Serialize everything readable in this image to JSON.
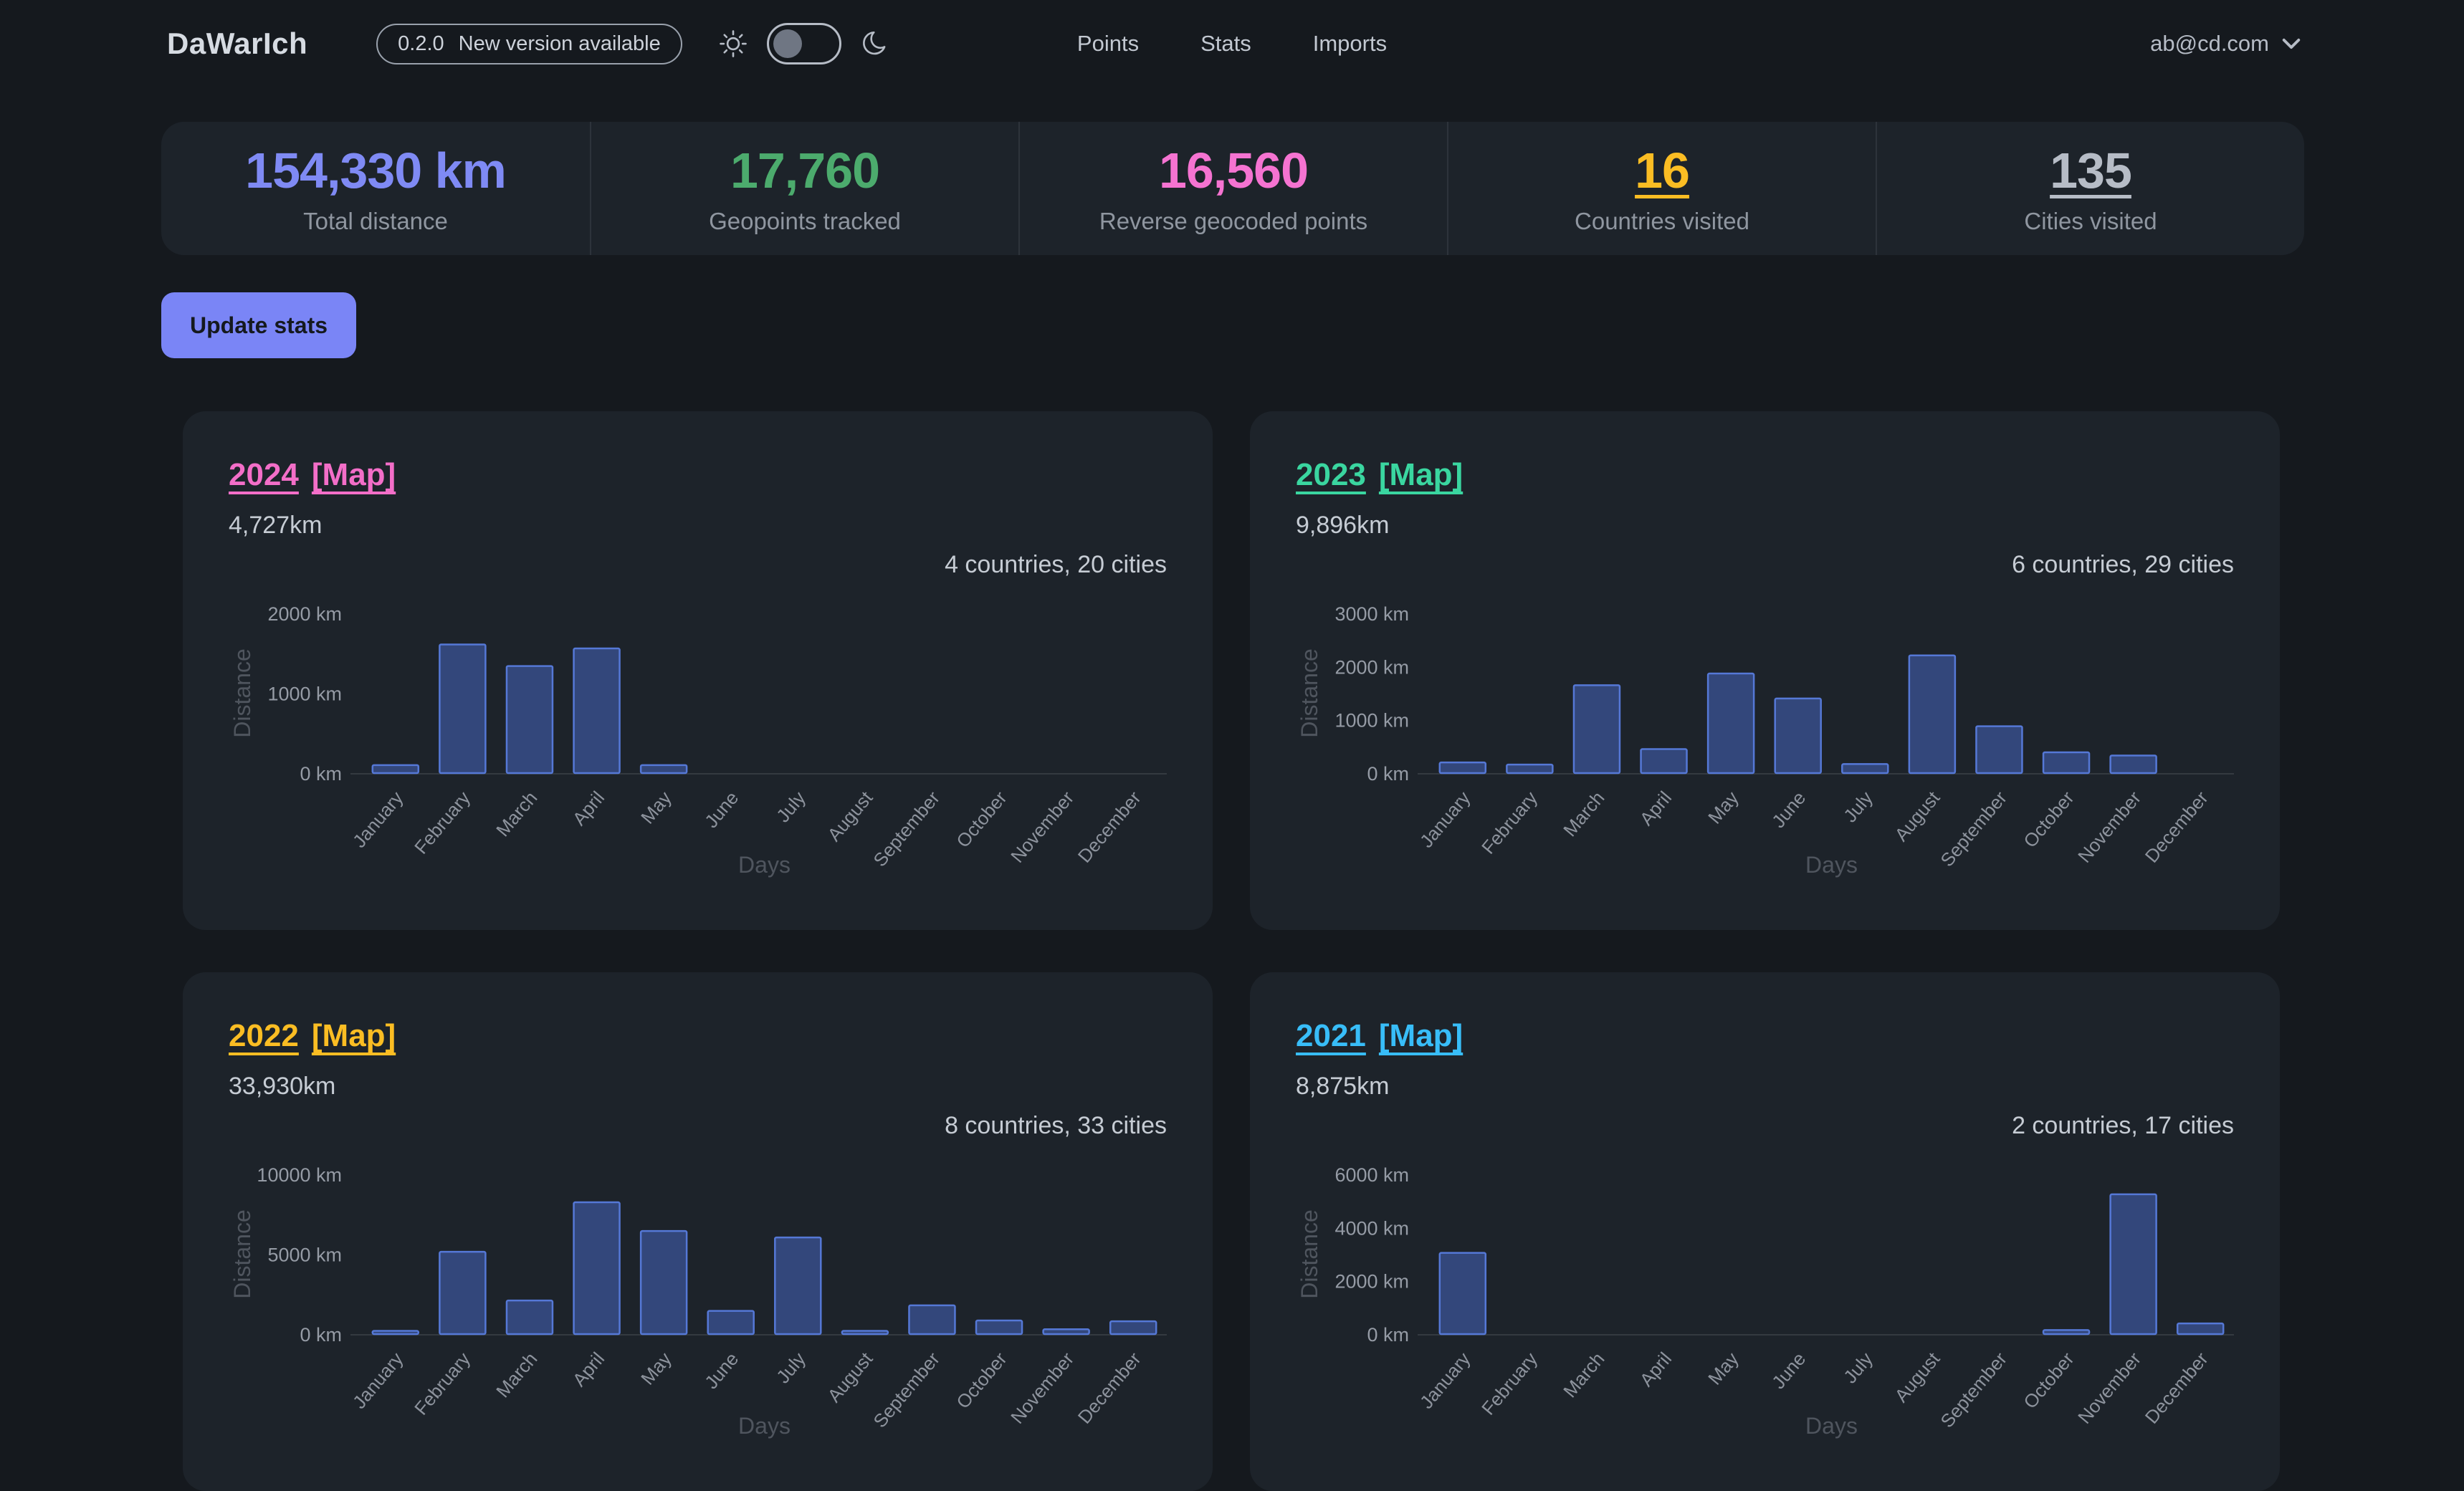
{
  "navbar": {
    "brand": "DaWarIch",
    "version_badge": {
      "version": "0.2.0",
      "text": "New version available"
    },
    "links": [
      "Points",
      "Stats",
      "Imports"
    ],
    "user_email": "ab@cd.com"
  },
  "stats": {
    "items": [
      {
        "value": "154,330 km",
        "label": "Total distance",
        "color": "#7f8af4",
        "underline": false
      },
      {
        "value": "17,760",
        "label": "Geopoints tracked",
        "color": "#4cab6d",
        "underline": false
      },
      {
        "value": "16,560",
        "label": "Reverse geocoded points",
        "color": "#f573d1",
        "underline": false
      },
      {
        "value": "16",
        "label": "Countries visited",
        "color": "#fbbd23",
        "underline": true
      },
      {
        "value": "135",
        "label": "Cities visited",
        "color": "#b6bcc6",
        "underline": true
      }
    ]
  },
  "actions": {
    "update_stats_label": "Update stats"
  },
  "chart_data": [
    {
      "type": "bar",
      "title": "2024",
      "map_label": "[Map]",
      "accent": "#f36ec8",
      "distance": "4,727km",
      "summary": "4 countries, 20 cities",
      "xlabel": "Days",
      "ylabel": "Distance",
      "categories": [
        "January",
        "February",
        "March",
        "April",
        "May",
        "June",
        "July",
        "August",
        "September",
        "October",
        "November",
        "December"
      ],
      "values": [
        100,
        1610,
        1340,
        1560,
        100,
        0,
        0,
        0,
        0,
        0,
        0,
        0
      ],
      "ylim": [
        0,
        2000
      ],
      "yticks": [
        0,
        1000,
        2000
      ],
      "tick_suffix": " km",
      "bar_fill": "#33477b",
      "bar_border": "#5578d6",
      "grid": false,
      "legend": "none"
    },
    {
      "type": "bar",
      "title": "2023",
      "map_label": "[Map]",
      "accent": "#3ad6a0",
      "distance": "9,896km",
      "summary": "6 countries, 29 cities",
      "xlabel": "Days",
      "ylabel": "Distance",
      "categories": [
        "January",
        "February",
        "March",
        "April",
        "May",
        "June",
        "July",
        "August",
        "September",
        "October",
        "November",
        "December"
      ],
      "values": [
        200,
        160,
        1650,
        450,
        1870,
        1400,
        170,
        2210,
        880,
        390,
        330,
        0
      ],
      "ylim": [
        0,
        3000
      ],
      "yticks": [
        0,
        1000,
        2000,
        3000
      ],
      "tick_suffix": " km",
      "bar_fill": "#33477b",
      "bar_border": "#5578d6",
      "grid": false,
      "legend": "none"
    },
    {
      "type": "bar",
      "title": "2022",
      "map_label": "[Map]",
      "accent": "#fbbd23",
      "distance": "33,930km",
      "summary": "8 countries, 33 cities",
      "xlabel": "Days",
      "ylabel": "Distance",
      "categories": [
        "January",
        "February",
        "March",
        "April",
        "May",
        "June",
        "July",
        "August",
        "September",
        "October",
        "November",
        "December"
      ],
      "values": [
        200,
        5150,
        2100,
        8250,
        6450,
        1450,
        6050,
        200,
        1800,
        850,
        300,
        800
      ],
      "ylim": [
        0,
        10000
      ],
      "yticks": [
        0,
        5000,
        10000
      ],
      "tick_suffix": " km",
      "bar_fill": "#33477b",
      "bar_border": "#5578d6",
      "grid": false,
      "legend": "none"
    },
    {
      "type": "bar",
      "title": "2021",
      "map_label": "[Map]",
      "accent": "#38bdf8",
      "distance": "8,875km",
      "summary": "2 countries, 17 cities",
      "xlabel": "Days",
      "ylabel": "Distance",
      "categories": [
        "January",
        "February",
        "March",
        "April",
        "May",
        "June",
        "July",
        "August",
        "September",
        "October",
        "November",
        "December"
      ],
      "values": [
        3050,
        0,
        0,
        0,
        0,
        0,
        0,
        0,
        0,
        150,
        5250,
        400
      ],
      "ylim": [
        0,
        6000
      ],
      "yticks": [
        0,
        2000,
        4000,
        6000
      ],
      "tick_suffix": " km",
      "bar_fill": "#33477b",
      "bar_border": "#5578d6",
      "grid": false,
      "legend": "none"
    }
  ]
}
